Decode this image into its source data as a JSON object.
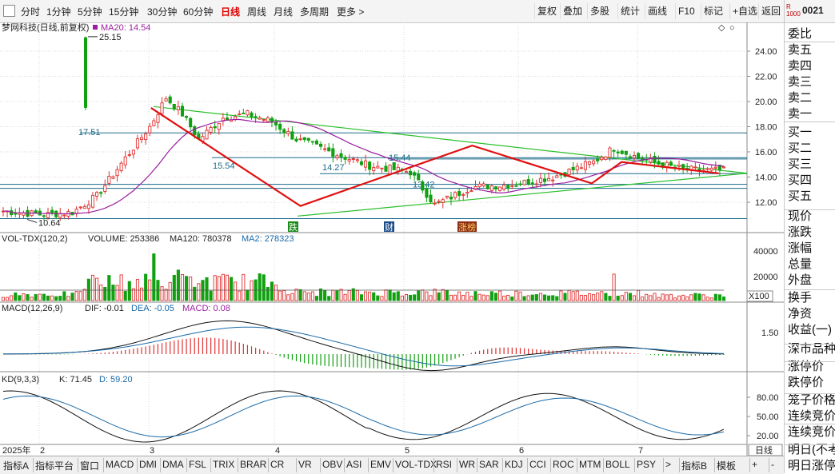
{
  "toolbar": {
    "timeframes": [
      "分时",
      "1分钟",
      "5分钟",
      "15分钟",
      "30分钟",
      "60分钟",
      "日线",
      "周线",
      "月线",
      "多周期",
      "更多 >"
    ],
    "active": "日线",
    "buttons": [
      "复权",
      "叠加",
      "多股",
      "统计",
      "画线",
      "F10",
      "标记",
      "+自选",
      "返回"
    ]
  },
  "sidebar": {
    "badge_r": "R",
    "badge_num": "1000",
    "code": "0021",
    "rows": [
      "委比",
      "卖五",
      "卖四",
      "卖三",
      "卖二",
      "卖一",
      "买一",
      "买二",
      "买三",
      "买四",
      "买五",
      "现价",
      "涨跌",
      "涨幅",
      "总量",
      "外盘",
      "换手",
      "净资",
      "收益(一)",
      "深市品种",
      "涨停价",
      "跌停价",
      "笼子价格",
      "连续竞价",
      "连续竞价",
      "明日(不考",
      "明日涨停",
      "明日跌停"
    ],
    "row_tops": [
      42,
      62,
      82,
      102,
      122,
      142,
      165,
      185,
      205,
      225,
      245,
      270,
      290,
      310,
      330,
      350,
      372,
      392,
      412,
      436,
      458,
      478,
      500,
      520,
      540,
      562,
      582,
      602
    ]
  },
  "main_chart": {
    "title": "梦网科技(日线,前复权)",
    "ma_label": "MA20: 14.54",
    "high_label": "25.15",
    "low_label": "10.64",
    "levels": [
      "17.51",
      "15.54",
      "15.44",
      "14.27",
      "13.42"
    ],
    "y_ticks": [
      "24.00",
      "22.00",
      "20.00",
      "18.00",
      "16.00",
      "14.00",
      "12.00"
    ],
    "markers": [
      "跌",
      "财",
      "涨榜"
    ]
  },
  "volume_panel": {
    "label": "VOL-TDX(120,2)",
    "volume": "VOLUME: 253386",
    "ma120": "MA120: 780378",
    "ma2": "MA2: 278323",
    "y_ticks": [
      "40000",
      "20000"
    ],
    "unit": "X100"
  },
  "macd_panel": {
    "label": "MACD(12,26,9)",
    "dif": "DIF: -0.01",
    "dea": "DEA: -0.05",
    "macd": "MACD: 0.08",
    "y_tick": "1.50"
  },
  "kd_panel": {
    "label": "KD(9,3,3)",
    "k": "K: 71.45",
    "d": "D: 59.20",
    "y_ticks": [
      "80.00",
      "50.00",
      "20.00"
    ]
  },
  "x_axis": {
    "labels": [
      "2025年",
      "2",
      "3",
      "4",
      "5",
      "6",
      "7"
    ],
    "period": "日线"
  },
  "bottom_tabs": [
    "指标A",
    "指标平台",
    "窗口",
    "MACD",
    "DMI",
    "DMA",
    "FSL",
    "TRIX",
    "BRAR",
    "CR",
    "VR",
    "OBV",
    "ASI",
    "EMV",
    "VOL-TDX",
    "RSI",
    "WR",
    "SAR",
    "KDJ",
    "CCI",
    "ROC",
    "MTM",
    "BOLL",
    "PSY",
    ">",
    "指标B",
    "模板",
    "+",
    "-"
  ],
  "chart_data": {
    "type": "candlestick",
    "title": "梦网科技(日线,前复权)",
    "x_labels": [
      "2025年",
      "2",
      "3",
      "4",
      "5",
      "6",
      "7"
    ],
    "price_ticks": [
      24,
      22,
      20,
      18,
      16,
      14,
      12
    ],
    "labels": {
      "high": 25.15,
      "low": 10.64,
      "ma20": 14.54
    },
    "horizontal_levels": [
      17.51,
      15.54,
      15.44,
      14.27,
      13.42
    ],
    "zigzag_points": [
      [
        0.2,
        19.5
      ],
      [
        0.4,
        11.7
      ],
      [
        0.63,
        16.5
      ],
      [
        0.79,
        13.5
      ],
      [
        0.83,
        15.2
      ],
      [
        0.96,
        14.3
      ]
    ]
  }
}
